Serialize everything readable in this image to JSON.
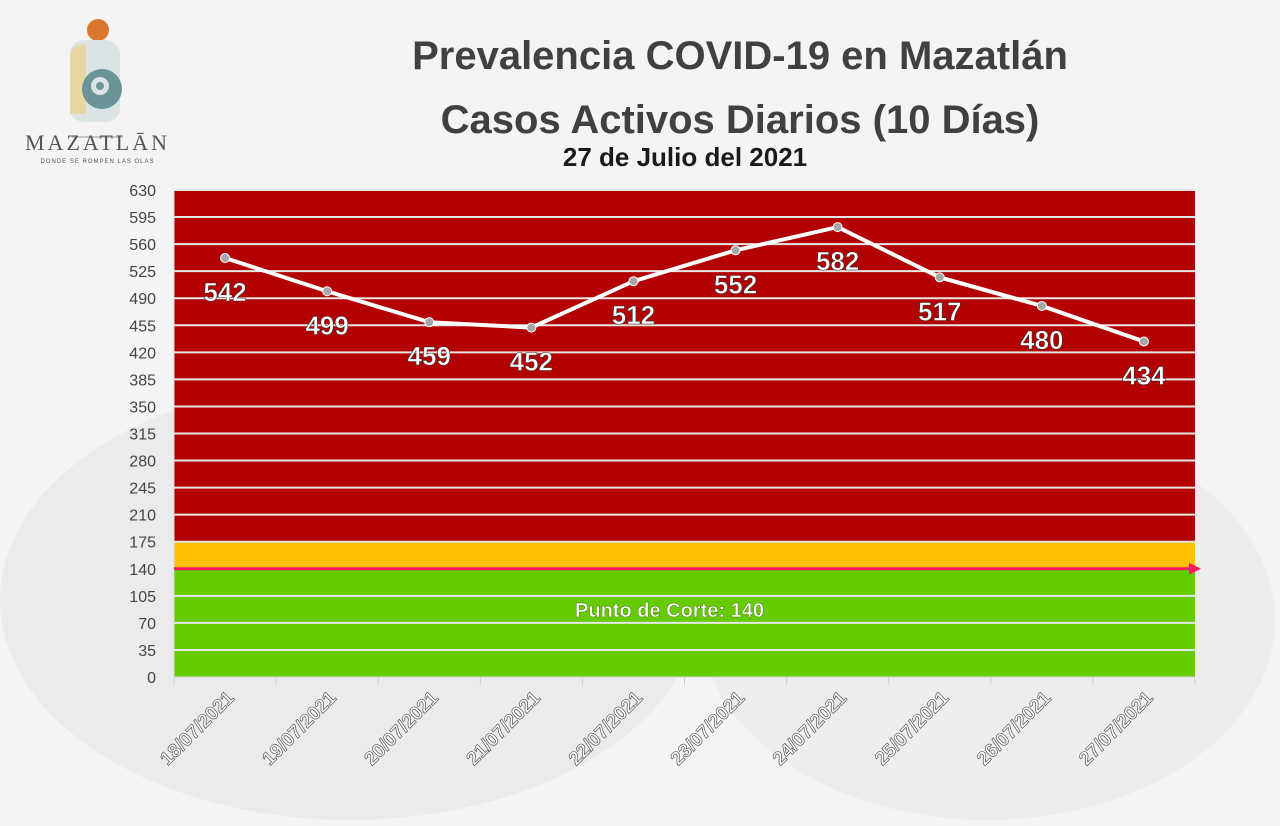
{
  "logo": {
    "name": "MAZATLĀN",
    "tagline": "DONDE SE ROMPEN LAS OLAS"
  },
  "chart_data": {
    "type": "line",
    "title": "Prevalencia COVID-19 en Mazatlán",
    "subtitle": "Casos Activos Diarios (10 Días)",
    "date": "27 de Julio del 2021",
    "categories": [
      "18/07/2021",
      "19/07/2021",
      "20/07/2021",
      "21/07/2021",
      "22/07/2021",
      "23/07/2021",
      "24/07/2021",
      "25/07/2021",
      "26/07/2021",
      "27/07/2021"
    ],
    "values": [
      542,
      499,
      459,
      452,
      512,
      552,
      582,
      517,
      480,
      434
    ],
    "ylim": [
      0,
      630
    ],
    "yticks": [
      0,
      35,
      70,
      105,
      140,
      175,
      210,
      245,
      280,
      315,
      350,
      385,
      420,
      455,
      490,
      525,
      560,
      595,
      630
    ],
    "bands": [
      {
        "from": 0,
        "to": 140,
        "color": "#66cc00"
      },
      {
        "from": 140,
        "to": 175,
        "color": "#ffc000"
      },
      {
        "from": 175,
        "to": 630,
        "color": "#b30000"
      }
    ],
    "threshold": {
      "value": 140,
      "label": "Punto de Corte: 140",
      "color": "#ff1a66"
    },
    "line_color": "#ffffff",
    "grid": true
  }
}
